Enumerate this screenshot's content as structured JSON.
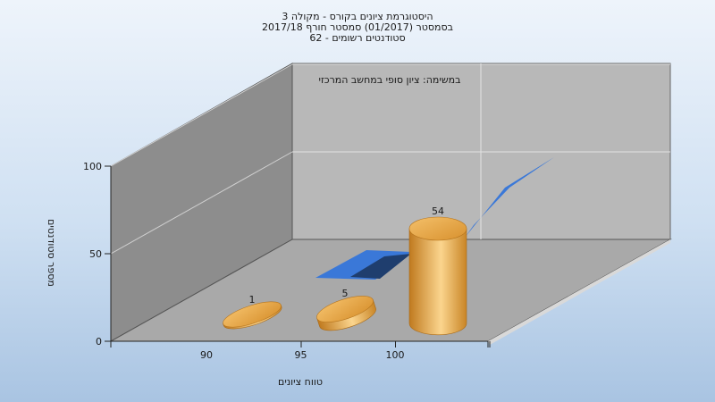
{
  "chart_data": {
    "type": "bar",
    "title_lines": [
      "היסטוגרמת ציונים בקורס - מקולה 3",
      "בסמסטר  (01/2017)  סמסטר חורף  2017/18",
      "סטודנטים רשומים - 62"
    ],
    "subtitle": "במשימה: ציון סופי במחשב המרכזי",
    "xlabel": "טווח ציונים",
    "ylabel": "מספר סטודנטים",
    "x_ticks": [
      90,
      95,
      100
    ],
    "y_ticks": [
      0,
      50,
      100
    ],
    "ylim": [
      0,
      100
    ],
    "categories": [
      90,
      95,
      100
    ],
    "values": [
      1,
      5,
      54
    ],
    "data_labels": [
      "1",
      "5",
      "54"
    ],
    "grid": true,
    "colors": {
      "bar": "#e8a94a",
      "bar_dark": "#c07a1f",
      "bar_light": "#fbd58e",
      "back_wall": "#b7b7b7",
      "side_wall": "#8c8c8c",
      "floor": "#a8a8a8",
      "ribbon": "#3a78d8",
      "ribbon_dark": "#1f3e6e"
    }
  }
}
